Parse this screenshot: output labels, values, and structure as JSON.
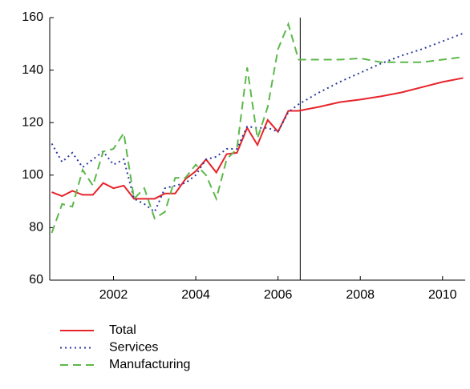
{
  "chart_data": {
    "type": "line",
    "x": [
      2000.5,
      2000.75,
      2001,
      2001.25,
      2001.5,
      2001.75,
      2002,
      2002.25,
      2002.5,
      2002.75,
      2003,
      2003.25,
      2003.5,
      2003.75,
      2004,
      2004.25,
      2004.5,
      2004.75,
      2005,
      2005.25,
      2005.5,
      2005.75,
      2006,
      2006.25,
      2006.5,
      2007,
      2007.5,
      2008,
      2008.5,
      2009,
      2009.5,
      2010,
      2010.5
    ],
    "series": [
      {
        "name": "Total",
        "color": "#e8232a",
        "dash": "solid",
        "values": [
          93.5,
          92,
          94,
          92.5,
          92.5,
          97,
          95,
          96,
          91,
          91,
          91,
          93,
          93,
          98.5,
          101.5,
          106,
          101,
          108,
          108.5,
          118,
          111.5,
          121,
          116.5,
          124.5,
          124.5,
          126,
          127.8,
          128.8,
          130,
          131.5,
          133.5,
          135.5,
          137
        ]
      },
      {
        "name": "Services",
        "color": "#2b3a9c",
        "dash": "dotted",
        "values": [
          112,
          105,
          108.5,
          103,
          106,
          109,
          104,
          106,
          91,
          89,
          86,
          95,
          96,
          97,
          100,
          106,
          107,
          110,
          110,
          118.5,
          118,
          118,
          116.5,
          124,
          127,
          131.5,
          135.5,
          139,
          142.5,
          145.5,
          148,
          151,
          154
        ]
      },
      {
        "name": "Manufacturing",
        "color": "#5cb84a",
        "dash": "dashed",
        "values": [
          78,
          89,
          88,
          102,
          96,
          109,
          110,
          116,
          91,
          95,
          83.5,
          86,
          99,
          99,
          104,
          100,
          91,
          106,
          110,
          141,
          114,
          126,
          148,
          157.5,
          144,
          144,
          144,
          144.5,
          143,
          143,
          143,
          144,
          145
        ]
      }
    ],
    "xlim": [
      2000.45,
      2010.55
    ],
    "xticks": [
      2002,
      2004,
      2006,
      2008,
      2010
    ],
    "ylim": [
      60,
      160
    ],
    "yticks": [
      60,
      80,
      100,
      120,
      140,
      160
    ],
    "vline": 2006.54,
    "grid": false
  }
}
